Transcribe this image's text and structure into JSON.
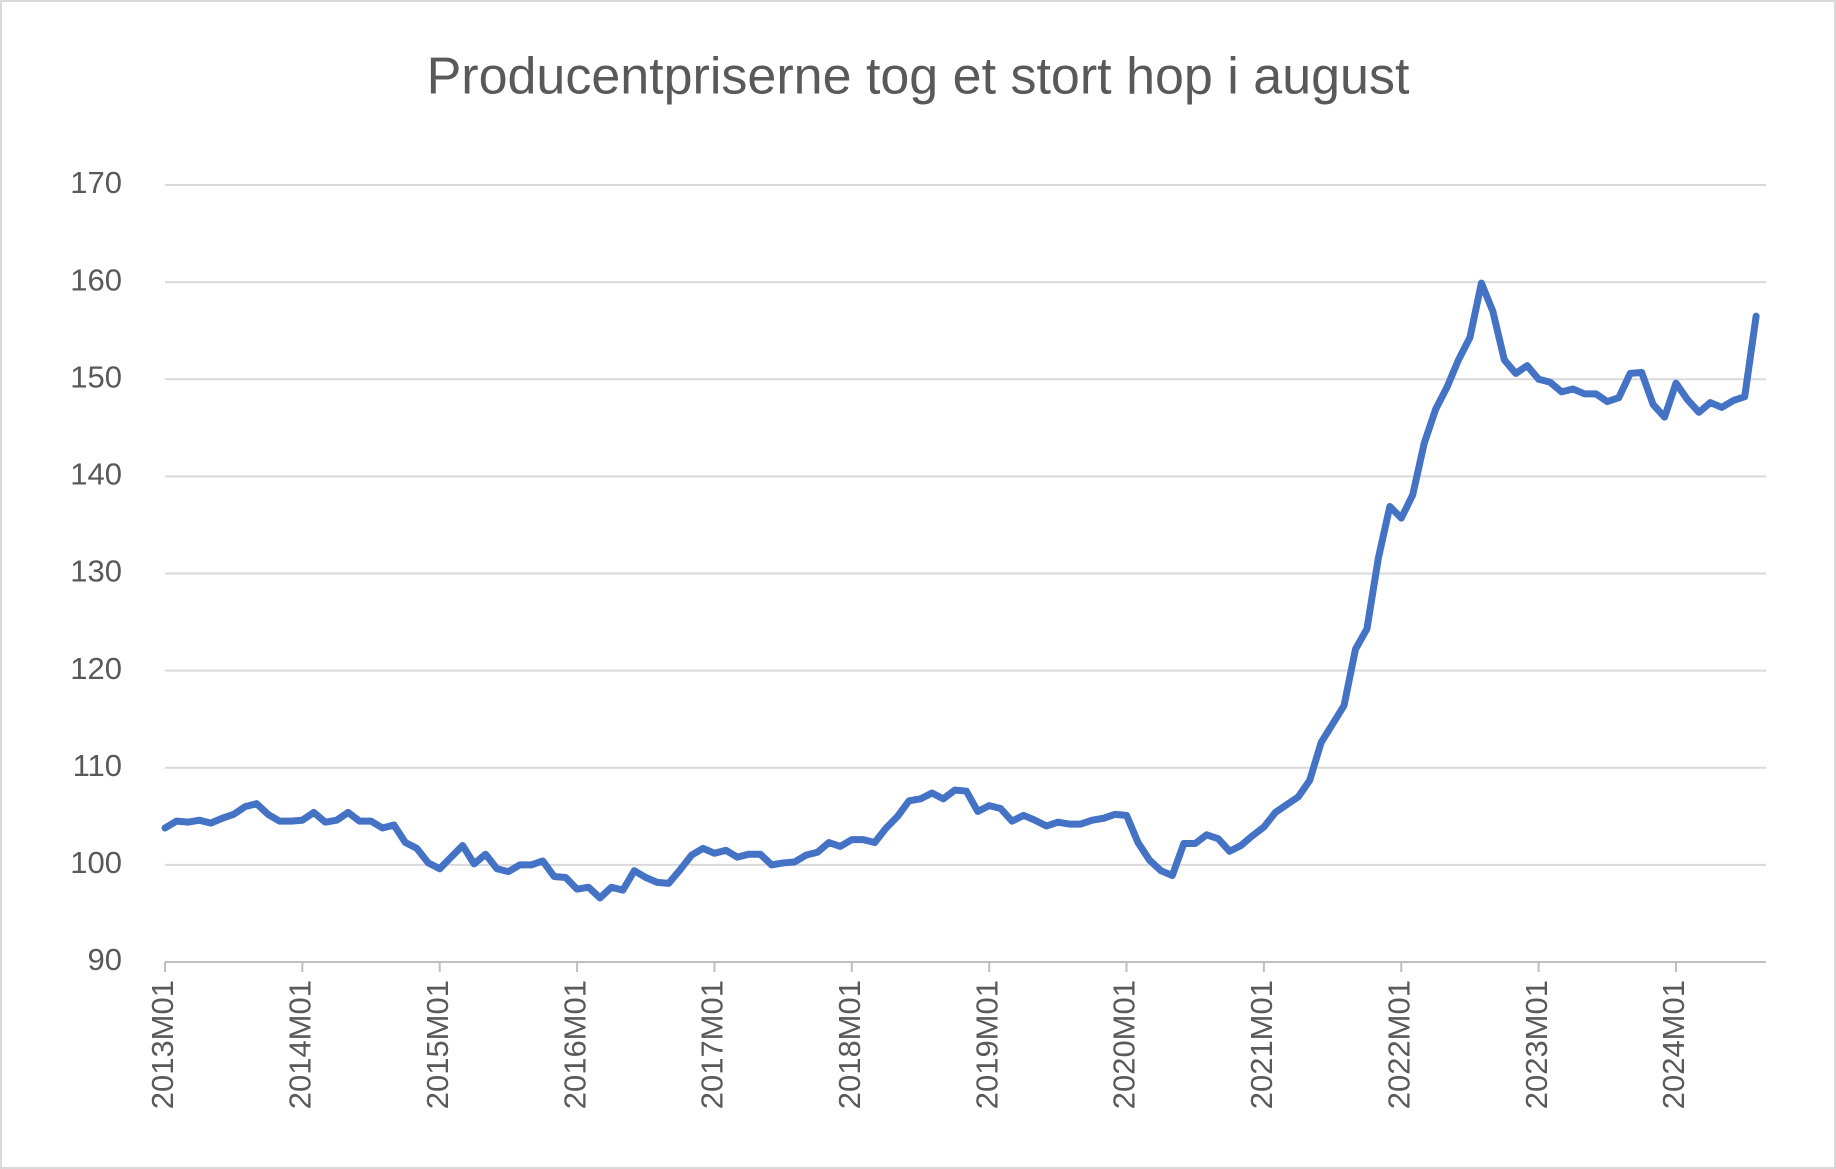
{
  "chart_data": {
    "type": "line",
    "title": "Producentpriserne tog et stort hop i august",
    "categories": [
      "2013M01",
      null,
      null,
      null,
      null,
      null,
      null,
      null,
      null,
      null,
      null,
      null,
      "2014M01",
      null,
      null,
      null,
      null,
      null,
      null,
      null,
      null,
      null,
      null,
      null,
      "2015M01",
      null,
      null,
      null,
      null,
      null,
      null,
      null,
      null,
      null,
      null,
      null,
      "2016M01",
      null,
      null,
      null,
      null,
      null,
      null,
      null,
      null,
      null,
      null,
      null,
      "2017M01",
      null,
      null,
      null,
      null,
      null,
      null,
      null,
      null,
      null,
      null,
      null,
      "2018M01",
      null,
      null,
      null,
      null,
      null,
      null,
      null,
      null,
      null,
      null,
      null,
      "2019M01",
      null,
      null,
      null,
      null,
      null,
      null,
      null,
      null,
      null,
      null,
      null,
      "2020M01",
      null,
      null,
      null,
      null,
      null,
      null,
      null,
      null,
      null,
      null,
      null,
      "2021M01",
      null,
      null,
      null,
      null,
      null,
      null,
      null,
      null,
      null,
      null,
      null,
      "2022M01",
      null,
      null,
      null,
      null,
      null,
      null,
      null,
      null,
      null,
      null,
      null,
      "2023M01",
      null,
      null,
      null,
      null,
      null,
      null,
      null,
      null,
      null,
      null,
      null,
      "2024M01",
      null,
      null,
      null,
      null,
      null,
      null,
      null
    ],
    "values": [
      103.8,
      104.5,
      104.4,
      104.6,
      104.3,
      104.8,
      105.2,
      106.0,
      106.3,
      105.2,
      104.5,
      104.5,
      104.6,
      105.4,
      104.4,
      104.6,
      105.4,
      104.5,
      104.5,
      103.8,
      104.1,
      102.3,
      101.7,
      100.2,
      99.6,
      100.8,
      102.0,
      100.1,
      101.1,
      99.6,
      99.3,
      100.0,
      100.0,
      100.4,
      98.8,
      98.7,
      97.5,
      97.7,
      96.6,
      97.7,
      97.4,
      99.4,
      98.7,
      98.2,
      98.1,
      99.5,
      101.0,
      101.7,
      101.2,
      101.5,
      100.8,
      101.1,
      101.1,
      100.0,
      100.2,
      100.3,
      101.0,
      101.3,
      102.3,
      101.9,
      102.6,
      102.6,
      102.3,
      103.8,
      105.0,
      106.6,
      106.8,
      107.4,
      106.8,
      107.7,
      107.6,
      105.5,
      106.1,
      105.8,
      104.5,
      105.1,
      104.6,
      104.0,
      104.4,
      104.2,
      104.2,
      104.6,
      104.8,
      105.2,
      105.1,
      102.3,
      100.5,
      99.4,
      98.9,
      102.2,
      102.2,
      103.1,
      102.7,
      101.4,
      102.0,
      103.0,
      103.9,
      105.4,
      106.2,
      107.0,
      108.7,
      112.6,
      114.5,
      116.4,
      122.2,
      124.3,
      131.6,
      136.9,
      135.7,
      138.1,
      143.4,
      146.9,
      149.2,
      152.0,
      154.3,
      159.9,
      157.0,
      152.0,
      150.6,
      151.4,
      150.0,
      149.7,
      148.7,
      149.0,
      148.5,
      148.5,
      147.7,
      148.1,
      150.6,
      150.7,
      147.4,
      146.1,
      149.6,
      147.9,
      146.6,
      147.6,
      147.1,
      147.8,
      148.2,
      156.5
    ],
    "color": "#4472c4",
    "ylim": [
      90,
      170
    ],
    "yticks": [
      90,
      100,
      110,
      120,
      130,
      140,
      150,
      160,
      170
    ],
    "grid": true
  }
}
